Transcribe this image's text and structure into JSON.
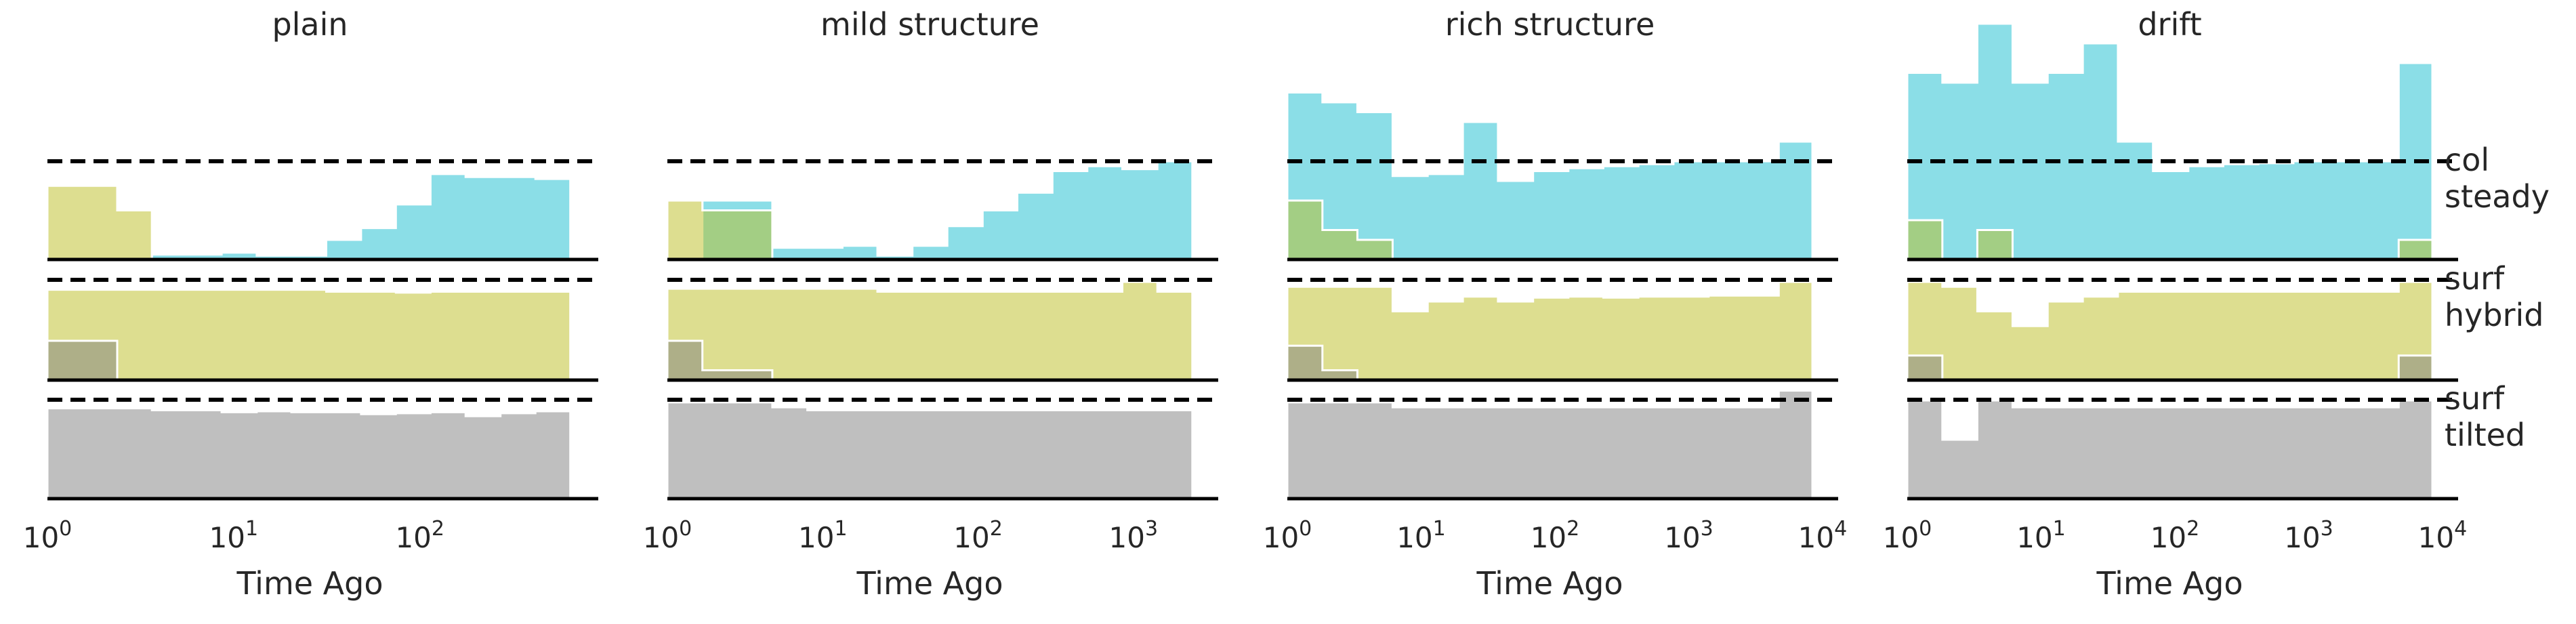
{
  "chart_data": {
    "type": "area",
    "xlabel": "Time Ago",
    "x_scale": "log",
    "colors": {
      "col": "#17becf",
      "surf": "#bcbd22",
      "tilted": "#7f7f7f",
      "col_alpha": 0.5,
      "surf_alpha": 0.5,
      "tilted_alpha": 0.5
    },
    "row_labels": [
      {
        "line1": "col",
        "line2": "steady"
      },
      {
        "line1": "surf",
        "line2": "hybrid"
      },
      {
        "line1": "surf",
        "line2": "tilted"
      }
    ],
    "panels": [
      {
        "title": "plain",
        "xlim": [
          1,
          660
        ],
        "ticks": [
          {
            "value": 1,
            "base": "10",
            "exp": "0"
          },
          {
            "value": 10,
            "base": "10",
            "exp": "1"
          },
          {
            "value": 100,
            "base": "10",
            "exp": "2"
          }
        ],
        "bin_edges": [
          1,
          1.54,
          2.37,
          3.64,
          5.6,
          8.62,
          13.3,
          20.4,
          31.4,
          48.3,
          74.3,
          114,
          176,
          271,
          417,
          642
        ],
        "rows": [
          {
            "col": [
              0.0,
              0.0,
              0.0,
              0.05,
              0.05,
              0.07,
              0.04,
              0.04,
              0.2,
              0.32,
              0.56,
              0.87,
              0.84,
              0.84,
              0.82
            ],
            "surf": [
              0.75,
              0.75,
              0.5,
              0.0,
              0.0,
              0.0,
              0.0,
              0.0,
              0.0,
              0.0,
              0.0,
              0.0,
              0.0,
              0.0,
              0.0
            ]
          },
          {
            "surf": [
              0.92,
              0.92,
              0.92,
              0.92,
              0.92,
              0.92,
              0.92,
              0.92,
              0.9,
              0.9,
              0.89,
              0.9,
              0.9,
              0.9,
              0.9
            ],
            "tilted": [
              0.4,
              0.4,
              0.0,
              0.0,
              0.0,
              0.0,
              0.0,
              0.0,
              0.0,
              0.0,
              0.0,
              0.0,
              0.0,
              0.0,
              0.0
            ]
          },
          {
            "tilted": [
              0.92,
              0.92,
              0.92,
              0.9,
              0.9,
              0.88,
              0.89,
              0.88,
              0.88,
              0.86,
              0.87,
              0.88,
              0.84,
              0.87,
              0.89
            ]
          }
        ]
      },
      {
        "title": "mild structure",
        "xlim": [
          1,
          2400
        ],
        "ticks": [
          {
            "value": 1,
            "base": "10",
            "exp": "0"
          },
          {
            "value": 10,
            "base": "10",
            "exp": "1"
          },
          {
            "value": 100,
            "base": "10",
            "exp": "2"
          },
          {
            "value": 1000,
            "base": "10",
            "exp": "3"
          }
        ],
        "bin_edges": [
          1,
          1.68,
          2.82,
          4.74,
          7.96,
          13.4,
          22.5,
          37.8,
          63.4,
          107,
          179,
          301,
          505,
          849,
          1426,
          2396
        ],
        "rows": [
          {
            "col": [
              0.0,
              0.6,
              0.6,
              0.12,
              0.12,
              0.14,
              0.04,
              0.14,
              0.34,
              0.5,
              0.68,
              0.9,
              0.95,
              0.92,
              1.0
            ],
            "surf": [
              0.6,
              0.5,
              0.5,
              0.0,
              0.0,
              0.0,
              0.0,
              0.0,
              0.0,
              0.0,
              0.0,
              0.0,
              0.0,
              0.0,
              0.0
            ]
          },
          {
            "surf": [
              0.93,
              0.93,
              0.93,
              0.93,
              0.93,
              0.93,
              0.9,
              0.9,
              0.9,
              0.9,
              0.9,
              0.9,
              0.9,
              1.0,
              0.9
            ],
            "tilted": [
              0.4,
              0.1,
              0.1,
              0.0,
              0.0,
              0.0,
              0.0,
              0.0,
              0.0,
              0.0,
              0.0,
              0.0,
              0.0,
              0.0,
              0.0
            ]
          },
          {
            "tilted": [
              0.98,
              0.98,
              0.98,
              0.93,
              0.9,
              0.9,
              0.9,
              0.9,
              0.9,
              0.9,
              0.9,
              0.9,
              0.9,
              0.9,
              0.9
            ]
          }
        ]
      },
      {
        "title": "rich structure",
        "xlim": [
          1,
          8400
        ],
        "ticks": [
          {
            "value": 1,
            "base": "10",
            "exp": "0"
          },
          {
            "value": 10,
            "base": "10",
            "exp": "1"
          },
          {
            "value": 100,
            "base": "10",
            "exp": "2"
          },
          {
            "value": 1000,
            "base": "10",
            "exp": "3"
          },
          {
            "value": 10000,
            "base": "10",
            "exp": "4"
          }
        ],
        "bin_edges": [
          1,
          1.83,
          3.34,
          6.12,
          11.2,
          20.5,
          37.5,
          68.6,
          126,
          230,
          420,
          769,
          1407,
          2574,
          4708,
          8400
        ],
        "rows": [
          {
            "col": [
              1.7,
              1.6,
              1.5,
              0.85,
              0.87,
              1.4,
              0.8,
              0.9,
              0.93,
              0.95,
              0.97,
              1.0,
              1.0,
              1.0,
              1.2
            ],
            "surf": [
              0.6,
              0.3,
              0.2,
              0.0,
              0.0,
              0.0,
              0.0,
              0.0,
              0.0,
              0.0,
              0.0,
              0.0,
              0.0,
              0.0,
              0.0
            ]
          },
          {
            "surf": [
              0.95,
              0.95,
              0.95,
              0.7,
              0.8,
              0.85,
              0.8,
              0.84,
              0.85,
              0.84,
              0.85,
              0.85,
              0.86,
              0.86,
              1.0
            ],
            "tilted": [
              0.35,
              0.1,
              0.0,
              0.0,
              0.0,
              0.0,
              0.0,
              0.0,
              0.0,
              0.0,
              0.0,
              0.0,
              0.0,
              0.0,
              0.0
            ]
          },
          {
            "tilted": [
              0.98,
              0.98,
              0.98,
              0.93,
              0.93,
              0.93,
              0.93,
              0.93,
              0.93,
              0.93,
              0.93,
              0.93,
              0.93,
              0.93,
              1.1
            ]
          }
        ]
      },
      {
        "title": "drift",
        "xlim": [
          1,
          8400
        ],
        "ticks": [
          {
            "value": 1,
            "base": "10",
            "exp": "0"
          },
          {
            "value": 10,
            "base": "10",
            "exp": "1"
          },
          {
            "value": 100,
            "base": "10",
            "exp": "2"
          },
          {
            "value": 1000,
            "base": "10",
            "exp": "3"
          },
          {
            "value": 10000,
            "base": "10",
            "exp": "4"
          }
        ],
        "bin_edges": [
          1,
          1.83,
          3.34,
          6.12,
          11.2,
          20.5,
          37.5,
          68.6,
          126,
          230,
          420,
          769,
          1407,
          2574,
          4708,
          8400
        ],
        "rows": [
          {
            "col": [
              1.9,
              1.8,
              2.4,
              1.8,
              1.9,
              2.2,
              1.2,
              0.9,
              0.95,
              0.97,
              0.98,
              1.0,
              1.0,
              1.0,
              2.0
            ],
            "surf": [
              0.4,
              0.0,
              0.3,
              0.0,
              0.0,
              0.0,
              0.0,
              0.0,
              0.0,
              0.0,
              0.0,
              0.0,
              0.0,
              0.0,
              0.2
            ]
          },
          {
            "surf": [
              1.0,
              0.95,
              0.7,
              0.55,
              0.8,
              0.85,
              0.9,
              0.9,
              0.9,
              0.9,
              0.9,
              0.9,
              0.9,
              0.9,
              1.0
            ],
            "tilted": [
              0.25,
              0.0,
              0.0,
              0.0,
              0.0,
              0.0,
              0.0,
              0.0,
              0.0,
              0.0,
              0.0,
              0.0,
              0.0,
              0.0,
              0.25
            ]
          },
          {
            "tilted": [
              1.0,
              0.6,
              1.0,
              0.93,
              0.93,
              0.93,
              0.93,
              0.93,
              0.93,
              0.93,
              0.93,
              0.93,
              0.93,
              0.93,
              1.0
            ]
          }
        ]
      }
    ]
  }
}
